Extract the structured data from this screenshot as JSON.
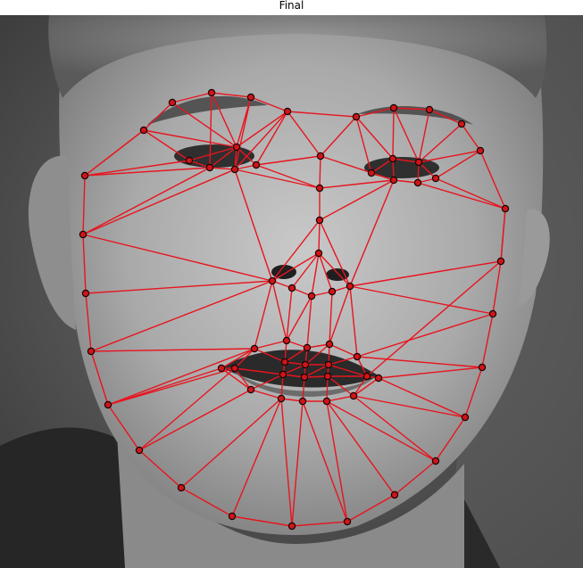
{
  "figure": {
    "title": "Final"
  },
  "colors": {
    "mesh_line": "#e8141e",
    "landmark_fill": "#d01418",
    "landmark_stroke": "#140404"
  },
  "image": {
    "description_icon": "grayscale-face-photo"
  }
}
